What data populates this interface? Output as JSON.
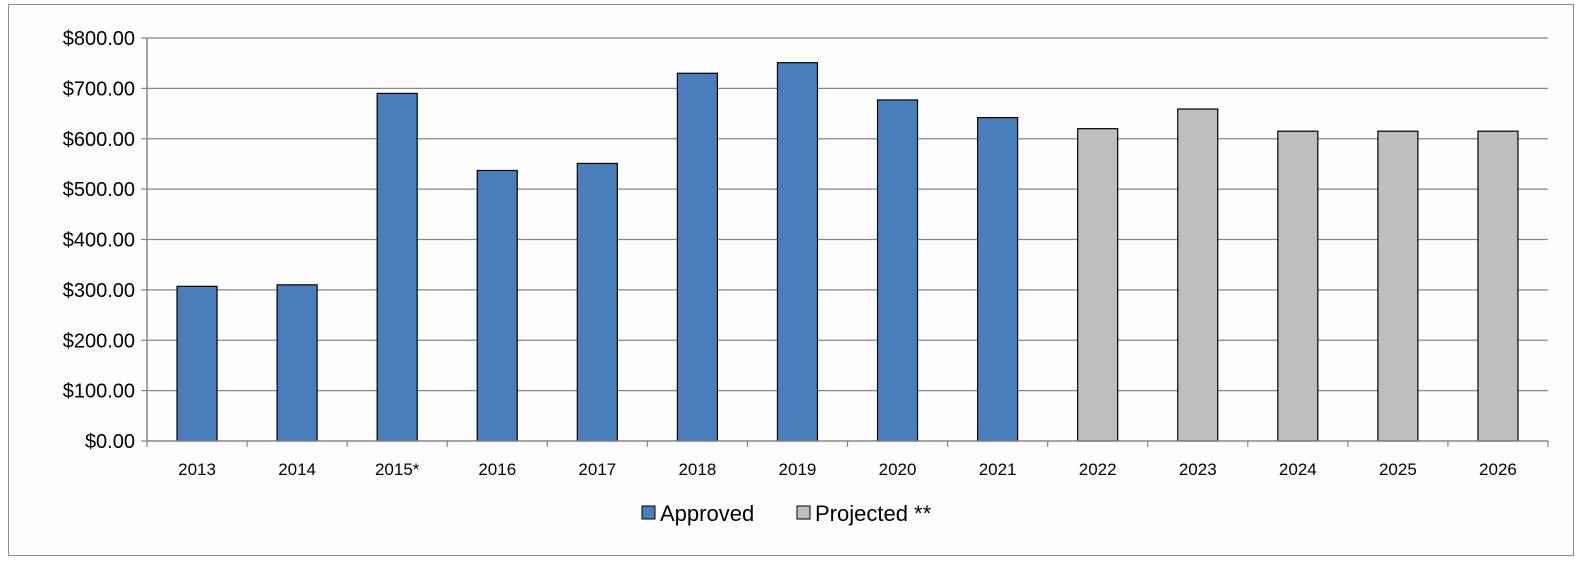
{
  "chart_data": {
    "type": "bar",
    "categories": [
      "2013",
      "2014",
      "2015*",
      "2016",
      "2017",
      "2018",
      "2019",
      "2020",
      "2021",
      "2022",
      "2023",
      "2024",
      "2025",
      "2026"
    ],
    "values": [
      307,
      310,
      690,
      537,
      551,
      730,
      751,
      677,
      642,
      620,
      659,
      615,
      615,
      615
    ],
    "bar_series_index": [
      0,
      0,
      0,
      0,
      0,
      0,
      0,
      0,
      0,
      1,
      1,
      1,
      1,
      1
    ],
    "series": [
      {
        "name": "Approved",
        "color": "#4a7ebb"
      },
      {
        "name": "Projected **",
        "color": "#bfbfbf"
      }
    ],
    "y_ticks": [
      "$0.00",
      "$100.00",
      "$200.00",
      "$300.00",
      "$400.00",
      "$500.00",
      "$600.00",
      "$700.00",
      "$800.00"
    ],
    "ylim": [
      0,
      800
    ],
    "grid": true,
    "legend_position": "bottom",
    "title": "",
    "xlabel": "",
    "ylabel": ""
  }
}
